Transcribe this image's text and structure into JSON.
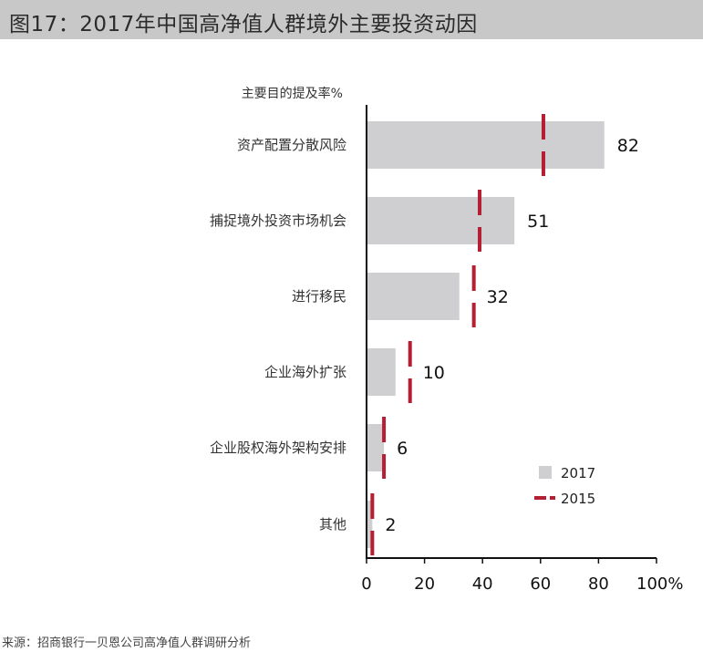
{
  "title": "图17：2017年中国高净值人群境外主要投资动因",
  "source": "来源：招商银行一贝恩公司高净值人群调研分析",
  "colors": {
    "bar_2017": "#cfced1",
    "marker_2015": "#b41f33",
    "axis": "#111111",
    "title_bg": "#c8c8c8"
  },
  "chart_data": {
    "type": "bar",
    "orientation": "horizontal",
    "ylabel": "主要目的提及率%",
    "categories": [
      "资产配置分散风险",
      "捕捉境外投资市场机会",
      "进行移民",
      "企业海外扩张",
      "企业股权海外架构安排",
      "其他"
    ],
    "series": [
      {
        "name": "2017",
        "style": "bar",
        "values": [
          82,
          51,
          32,
          10,
          6,
          2
        ]
      },
      {
        "name": "2015",
        "style": "dashed-marker",
        "values": [
          61,
          39,
          37,
          15,
          6,
          2
        ]
      }
    ],
    "data_labels": [
      "82",
      "51",
      "32",
      "10",
      "6",
      "2"
    ],
    "xlim": [
      0,
      100
    ],
    "xticks": [
      "0",
      "20",
      "40",
      "60",
      "80",
      "100%"
    ],
    "grid": false,
    "legend": "bottom-right"
  }
}
